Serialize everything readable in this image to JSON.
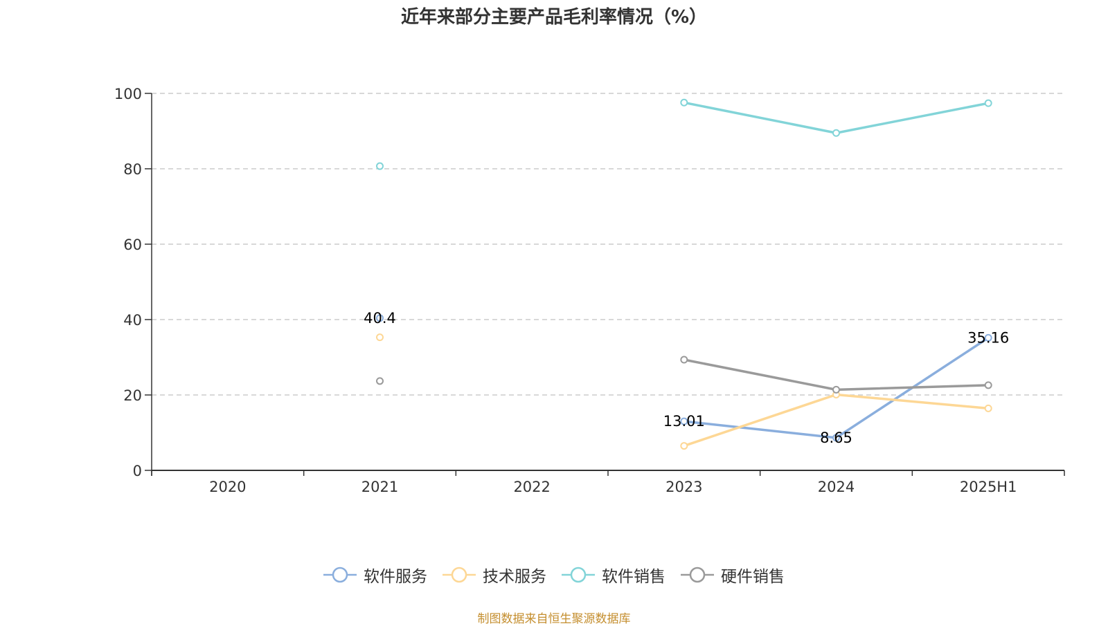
{
  "chart_data": {
    "type": "line",
    "title": "近年来部分主要产品毛利率情况（%）",
    "xlabel": "",
    "ylabel": "",
    "categories": [
      "2020",
      "2021",
      "2022",
      "2023",
      "2024",
      "2025H1"
    ],
    "ylim": [
      0,
      100
    ],
    "yticks": [
      "0",
      "20",
      "40",
      "60",
      "80",
      "100"
    ],
    "grid": true,
    "legend_position": "bottom",
    "series": [
      {
        "name": "软件服务",
        "color": "#8aaedd",
        "values": [
          null,
          40.4,
          null,
          13.01,
          8.65,
          35.16
        ],
        "labels": [
          null,
          "40.4",
          null,
          "13.01",
          "8.65",
          "35.16"
        ]
      },
      {
        "name": "技术服务",
        "color": "#fdd795",
        "values": [
          null,
          35.3,
          null,
          6.5,
          20.1,
          16.45
        ],
        "labels": [
          null,
          null,
          null,
          null,
          null,
          null
        ]
      },
      {
        "name": "软件销售",
        "color": "#82d4d8",
        "values": [
          null,
          80.7,
          null,
          97.56,
          89.5,
          97.4
        ],
        "labels": [
          null,
          null,
          null,
          null,
          null,
          null
        ]
      },
      {
        "name": "硬件销售",
        "color": "#9a9a9a",
        "values": [
          null,
          23.7,
          null,
          29.36,
          21.4,
          22.6
        ],
        "labels": [
          null,
          null,
          null,
          null,
          null,
          null
        ]
      }
    ]
  },
  "source": "制图数据来自恒生聚源数据库"
}
